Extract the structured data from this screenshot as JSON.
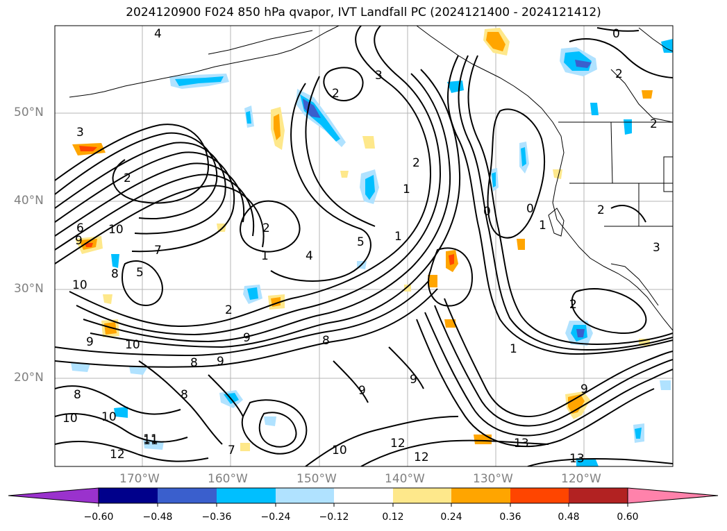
{
  "title": "2024120900 F024 850 hPa qvapor, IVT Landfall PC (2024121400 - 2024121412)",
  "map": {
    "lat_labels": [
      "50°N",
      "40°N",
      "30°N",
      "20°N"
    ],
    "lon_labels": [
      "170°W",
      "160°W",
      "150°W",
      "140°W",
      "130°W",
      "120°W"
    ],
    "contour_labels": [
      "4",
      "2",
      "3",
      "2",
      "2",
      "3",
      "6",
      "10",
      "9",
      "8",
      "7",
      "10",
      "5",
      "2",
      "1",
      "4",
      "5",
      "2",
      "1",
      "2",
      "1",
      "0",
      "1",
      "0",
      "2",
      "2",
      "3",
      "2",
      "1",
      "9",
      "10",
      "9",
      "8",
      "9",
      "8",
      "10",
      "11",
      "12",
      "13",
      "13",
      "12",
      "10",
      "9",
      "8",
      "7",
      "12",
      "11",
      "10",
      "8",
      "9",
      "9",
      "0",
      "2"
    ]
  },
  "colorbar": {
    "ticks": [
      "−0.60",
      "−0.48",
      "−0.36",
      "−0.24",
      "−0.12",
      "0.12",
      "0.24",
      "0.36",
      "0.48",
      "0.60"
    ],
    "colors": [
      "#9a32cd",
      "#00008b",
      "#3a5fcd",
      "#00bfff",
      "#b0e2ff",
      "#ffffff",
      "#fee88b",
      "#ffa500",
      "#ff4500",
      "#b22222",
      "#ff82ab"
    ]
  },
  "layers": {
    "negative_color_inner": "#3a5fcd",
    "negative_color_mid": "#00bfff",
    "negative_color_outer": "#b0e2ff",
    "positive_color_inner": "#ffa500",
    "positive_color_outer": "#fee88b",
    "positive_color_strong": "#ff4500"
  }
}
